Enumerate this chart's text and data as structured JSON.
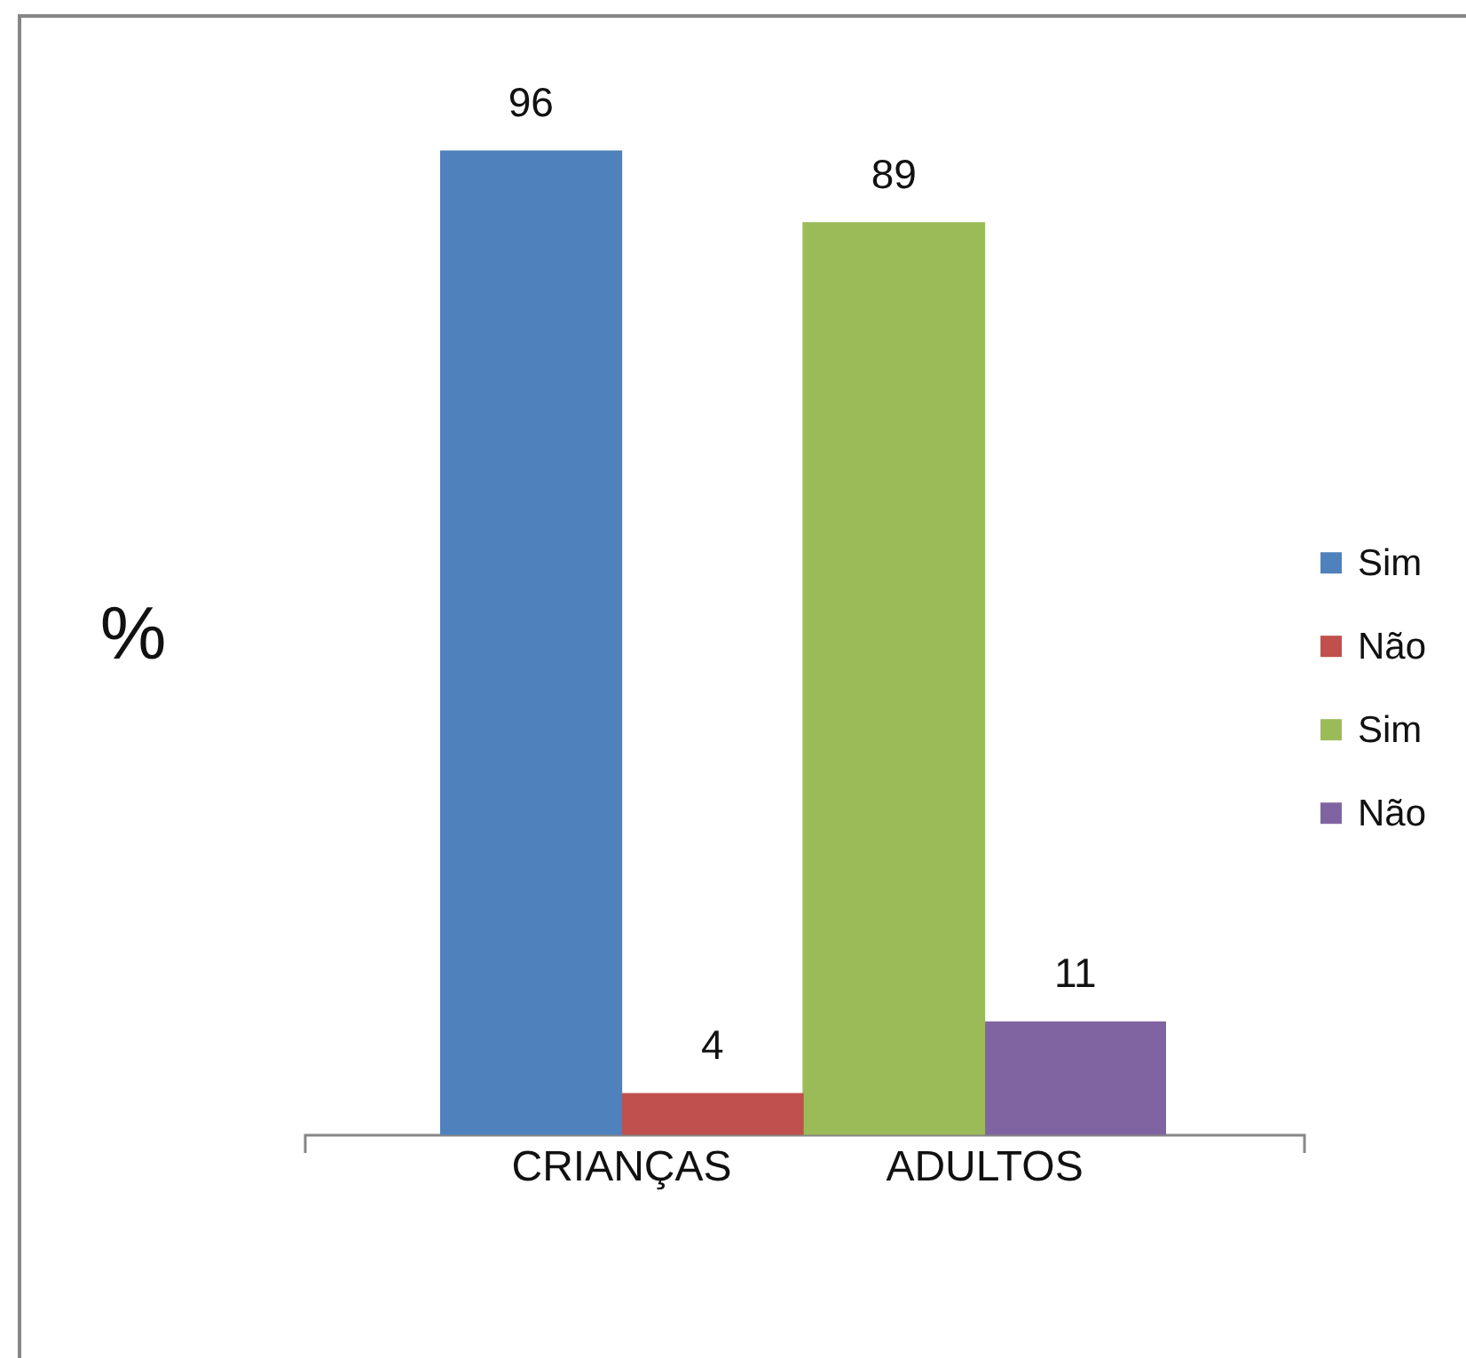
{
  "chart_data": {
    "type": "bar",
    "ylabel": "%",
    "categories": [
      "CRIANÇAS",
      "ADULTOS"
    ],
    "series": [
      {
        "name": "Sim",
        "color": "#4f81bd",
        "values": [
          96,
          null
        ]
      },
      {
        "name": "Não",
        "color": "#c0504d",
        "values": [
          4,
          null
        ]
      },
      {
        "name": "Sim",
        "color": "#9bbb59",
        "values": [
          null,
          89
        ]
      },
      {
        "name": "Não",
        "color": "#8064a2",
        "values": [
          null,
          11
        ]
      }
    ],
    "data_labels": true,
    "legend": "right"
  }
}
